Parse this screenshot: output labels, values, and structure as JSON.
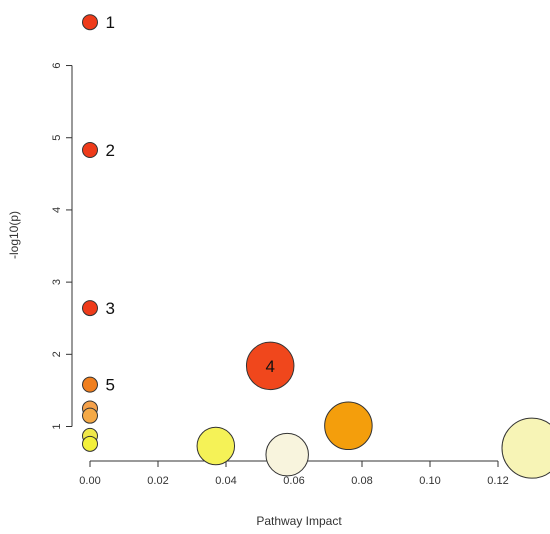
{
  "chart_data": {
    "type": "scatter",
    "xlabel": "Pathway Impact",
    "ylabel": "-log10(p)",
    "xlim": [
      0,
      0.13
    ],
    "ylim": [
      0.55,
      6.7
    ],
    "x_ticks": [
      "0.00",
      "0.02",
      "0.04",
      "0.06",
      "0.08",
      "0.10",
      "0.12"
    ],
    "y_ticks": [
      "1",
      "2",
      "3",
      "4",
      "5",
      "6"
    ],
    "grid": false,
    "points": [
      {
        "label": "1",
        "x": 0.0,
        "y": 6.6,
        "size": 0.6,
        "color": "#ee3b1a"
      },
      {
        "label": "2",
        "x": 0.0,
        "y": 4.83,
        "size": 0.6,
        "color": "#ee3b1a"
      },
      {
        "label": "3",
        "x": 0.0,
        "y": 2.64,
        "size": 0.6,
        "color": "#ee3b1a"
      },
      {
        "label": "4",
        "x": 0.053,
        "y": 1.84,
        "size": 1.9,
        "color": "#f0471c"
      },
      {
        "label": "5",
        "x": 0.0,
        "y": 1.58,
        "size": 0.6,
        "color": "#f07f1f"
      },
      {
        "label": "",
        "x": 0.0,
        "y": 1.25,
        "size": 0.6,
        "color": "#f5a14a"
      },
      {
        "label": "",
        "x": 0.0,
        "y": 1.15,
        "size": 0.6,
        "color": "#f4a946"
      },
      {
        "label": "",
        "x": 0.0,
        "y": 0.87,
        "size": 0.6,
        "color": "#f0e84a"
      },
      {
        "label": "",
        "x": 0.0,
        "y": 0.76,
        "size": 0.6,
        "color": "#f3f03a"
      },
      {
        "label": "",
        "x": 0.037,
        "y": 0.73,
        "size": 1.5,
        "color": "#f5f257"
      },
      {
        "label": "",
        "x": 0.058,
        "y": 0.61,
        "size": 1.7,
        "color": "#f8f4dd"
      },
      {
        "label": "",
        "x": 0.076,
        "y": 1.01,
        "size": 1.9,
        "color": "#f49e0c"
      },
      {
        "label": "",
        "x": 0.13,
        "y": 0.7,
        "size": 2.4,
        "color": "#f7f4b6"
      }
    ]
  }
}
